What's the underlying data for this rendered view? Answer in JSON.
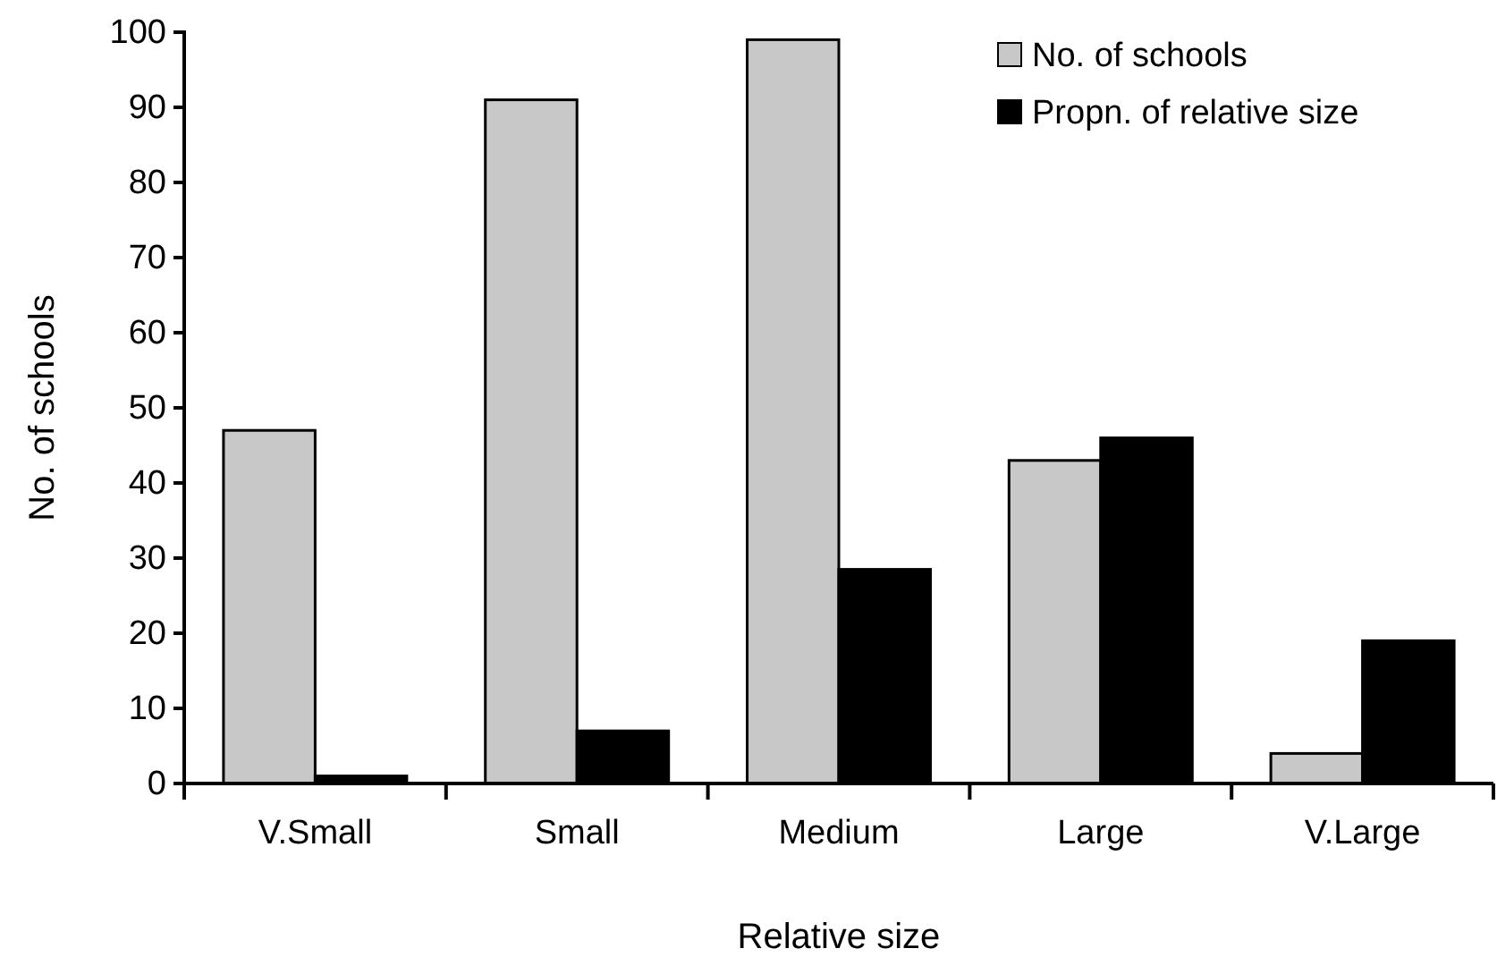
{
  "chart_data": {
    "type": "bar",
    "xlabel": "Relative size",
    "ylabel": "No. of schools",
    "categories": [
      "V.Small",
      "Small",
      "Medium",
      "Large",
      "V.Large"
    ],
    "series": [
      {
        "name": "No. of schools",
        "color": "#c8c8c8",
        "values": [
          47,
          91,
          99,
          43,
          4
        ]
      },
      {
        "name": "Propn. of relative size",
        "color": "#000000",
        "values": [
          1,
          7,
          28.5,
          46,
          19
        ]
      }
    ],
    "ylim": [
      0,
      100
    ],
    "yticks": [
      0,
      10,
      20,
      30,
      40,
      50,
      60,
      70,
      80,
      90,
      100
    ],
    "grid": false,
    "legend": "top right"
  }
}
